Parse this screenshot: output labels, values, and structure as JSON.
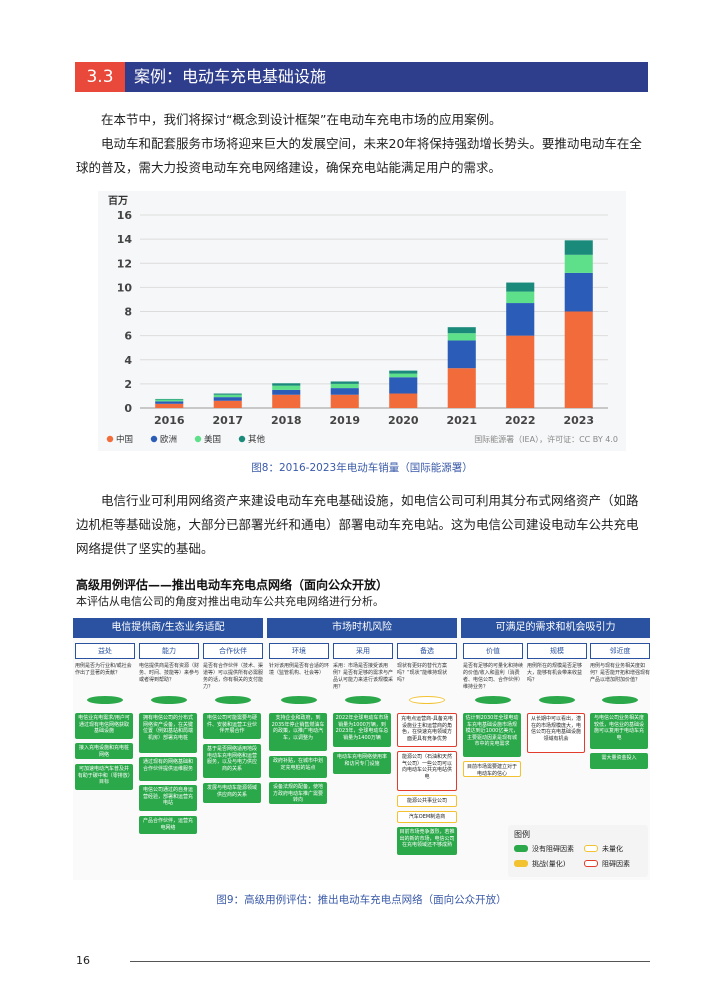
{
  "section": {
    "number": "3.3",
    "title": "案例：电动车充电基础设施"
  },
  "intro": [
    "在本节中，我们将探讨“概念到设计框架”在电动车充电市场的应用案例。",
    "电动车和配套服务市场将迎来巨大的发展空间，未来20年将保持强劲增长势头。要推动电动车在全球的普及，需大力投资电动车充电网络建设，确保充电站能满足用户的需求。"
  ],
  "chart_data": {
    "type": "bar",
    "stacked": true,
    "ylabel": "百万",
    "ylim": [
      0,
      16
    ],
    "yticks": [
      0,
      2,
      4,
      6,
      8,
      10,
      12,
      14,
      16
    ],
    "categories": [
      "2016",
      "2017",
      "2018",
      "2019",
      "2020",
      "2021",
      "2022",
      "2023"
    ],
    "series": [
      {
        "name": "中国",
        "color": "#f26b3a",
        "values": [
          0.35,
          0.6,
          1.1,
          1.1,
          1.2,
          3.3,
          6.0,
          8.0
        ]
      },
      {
        "name": "欧洲",
        "color": "#2a5cb8",
        "values": [
          0.2,
          0.3,
          0.4,
          0.55,
          1.35,
          2.3,
          2.7,
          3.2
        ]
      },
      {
        "name": "美国",
        "color": "#5ee08a",
        "values": [
          0.15,
          0.2,
          0.35,
          0.35,
          0.3,
          0.6,
          0.95,
          1.5
        ]
      },
      {
        "name": "其他",
        "color": "#1a8a7a",
        "values": [
          0.05,
          0.1,
          0.2,
          0.2,
          0.25,
          0.5,
          0.75,
          1.2
        ]
      }
    ],
    "source": "国际能源署（IEA），许可证：CC BY 4.0",
    "legend_position": "bottom-left"
  },
  "fig8_caption": "图8：2016-2023年电动车销量（国际能源署）",
  "para2": "电信行业可利用网络资产来建设电动车充电基础设施，如电信公司可利用其分布式网络资产（如路边机柜等基础设施，大部分已部署光纤和通电）部署电动车充电站。这为电信公司建设电动车公共充电网络提供了坚实的基础。",
  "eval": {
    "title": "高级用例评估——推出电动车充电点网络（面向公众开放）",
    "subtitle": "本评估从电信公司的角度对推出电动车公共充电网络进行分析。"
  },
  "diagram": {
    "groups": [
      "电信提供商/生态业务适配",
      "市场时机风险",
      "可满足的需求和机会吸引力"
    ],
    "subs": [
      "益处",
      "能力",
      "合作伙伴",
      "环境",
      "采用",
      "备选",
      "价值",
      "规模",
      "邻近度"
    ],
    "questions": [
      "用例是否为行业和/或社会作出了显著的贡献？",
      "电信提供商是否有资源（财务、时间、技能等）来参与或者得到帮助？",
      "是否有合作伙伴（技术、渠道等）可以提供所有必需服务的话，你有相关的支付能力？",
      "针对该用例是否有合适的环境（监管机构、社会等）",
      "采用：市场是否接受该用例？是否有足够的需求与产品认可能力来进行该规模采用？",
      "现状有更好的替代方案吗？“现状”能维持现状吗？",
      "是否有足够的可量化和持续的价值/收入和盈利（消费者、电信公司、合作伙伴）维持业务？",
      "用例所在的规模是否足够大，能够有机会带来收益吗？",
      "用例与现有业务相关度如何？是否能开拓和增强现有产品以增加附加价值？"
    ],
    "boxes": {
      "benefit": [
        "电信业充电需求/用户可通过现有电信网络获取基础设施",
        "接入充电设施和充电桩网络",
        "可加速电动汽车普及并有助于碳中和（零排放）目标"
      ],
      "capability": [
        "拥有电信公司的分布式网络资产设备，在关键位置（例如基站和局端机房）部署充电桩",
        "通过现有的网络基础和合作伙伴提供运维服务",
        "电信公司通过的自身运营经验，部署和运营充电站",
        "产品合作伙伴，运营充电网络"
      ],
      "partners": [
        "电信公司可能需要与硬件、安装和运营工业伙伴开展合作",
        "基于是否网络适用地段电动车充电网络和运营服务，以及与电力供应商的关系",
        "发展与电动车能源领域供应商的关系"
      ],
      "environment": [
        "支持企业和政府，到2035年停止销售燃油车的政策，以推广电动汽车，以调整为",
        "政府补贴，在城市中划定充电桩的站点",
        "设备法规的配备，使地方政府电动车推广需要转向"
      ],
      "adoption": [
        "2022年全球电动车市场销量为1000万辆，到2023年，全球电动车总销量为1400万辆",
        "电动车充电网络使用率和访问专门设施"
      ],
      "alternatives": [
        "充电点运营商-具备充电设施业主和运营商的角色，在快速充电领域方面更具有竞争优势",
        "能源公司（石油和天然气公司）一些公司可以向电动车公共充电站供电",
        "能源公共事业公司",
        "汽车OEM制造商",
        "目前市场竞争激烈，若推出的新的市场，电信公司在充电领域还不够成熟"
      ],
      "value": [
        "估计到2030年全球电动车充电基础设施市场规模达到近1000亿美元，主要驱动因素是现有城市中的充电需求",
        "目前市场需要建立对于电动车的信心"
      ],
      "scale": [
        "从长期中可以看出，潜在的市场规模庞大，电信公司在充电基础设施领域有机会"
      ],
      "proximity": [
        "与电信公司业务相关度较低，电信业的基础设施可以复用于电动车充电",
        "需大量资金投入"
      ]
    },
    "legend": {
      "title": "图例",
      "items": [
        "没有阻碍因素",
        "未量化",
        "挑战(量化)",
        "阻碍因素"
      ]
    }
  },
  "fig9_caption": "图9：高级用例评估：推出电动车充电点网络（面向公众开放）",
  "page_number": "16"
}
